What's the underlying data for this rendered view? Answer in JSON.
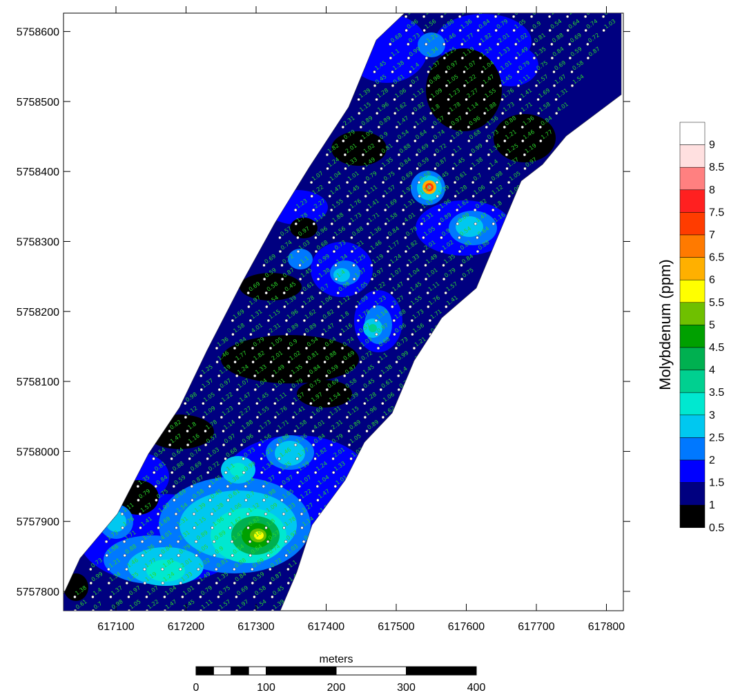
{
  "map": {
    "x_axis": {
      "ticks": [
        "617100",
        "617200",
        "617300",
        "617400",
        "617500",
        "617600",
        "617700",
        "617800"
      ]
    },
    "y_axis": {
      "ticks": [
        "5757800",
        "5757900",
        "5758000",
        "5758100",
        "5758200",
        "5758300",
        "5758400",
        "5758500",
        "5758600"
      ]
    },
    "legend": {
      "title": "Molybdenum (ppm)",
      "levels": [
        {
          "label": "9",
          "color": "#ffe0e0"
        },
        {
          "label": "8.5",
          "color": "#ff8080"
        },
        {
          "label": "8",
          "color": "#ff2020"
        },
        {
          "label": "7.5",
          "color": "#ff3c00"
        },
        {
          "label": "7",
          "color": "#ff7a00"
        },
        {
          "label": "6.5",
          "color": "#ffb000"
        },
        {
          "label": "6",
          "color": "#ffff00"
        },
        {
          "label": "5.5",
          "color": "#6fc000"
        },
        {
          "label": "5",
          "color": "#00a000"
        },
        {
          "label": "4.5",
          "color": "#00b050"
        },
        {
          "label": "4",
          "color": "#00d090"
        },
        {
          "label": "3.5",
          "color": "#00e8d0"
        },
        {
          "label": "3",
          "color": "#00c8f0"
        },
        {
          "label": "2.5",
          "color": "#0078ff"
        },
        {
          "label": "2",
          "color": "#0000ff"
        },
        {
          "label": "1.5",
          "color": "#000080"
        },
        {
          "label": "1",
          "color": "#000000"
        },
        {
          "label": "0.5",
          "color": ""
        }
      ],
      "top_color": "#ffffff"
    },
    "scale_bar": {
      "title": "meters",
      "labels": [
        "0",
        "100",
        "200",
        "300",
        "400"
      ]
    },
    "colors": {
      "background": "#000080",
      "high_anomaly": "#00c8f0",
      "low_zone": "#000000",
      "sample_label": "#2bd82b"
    },
    "sample_values": [
      "1.88",
      "1.73",
      "1.71",
      "1.58",
      "4.01",
      "2.31",
      "0.89",
      "0.89",
      "1.47",
      "1.16",
      "0.57",
      "0.97",
      "0.96",
      "1.56",
      "0.88",
      "1.36",
      "0.84",
      "0.79",
      "1.05",
      "0.9",
      "0.54",
      "0.64",
      "0.74",
      "1.03",
      "0.68",
      "0.73",
      "1.21",
      "1.46",
      "1.77",
      "1.82",
      "2.01",
      "1.02",
      "0.81",
      "0.88",
      "0.69",
      "0.72",
      "1.1",
      "0.99",
      "1.34",
      "1.25",
      "1.19",
      "1.24",
      "1.33",
      "1.49",
      "1.35",
      "0.84",
      "0.59",
      "0.87",
      "1.45",
      "1.38",
      "1.4",
      "1.37",
      "0.97",
      "1.07",
      "1.04",
      "1.01",
      "0.79",
      "0.75",
      "0.69",
      "0.58",
      "0.45",
      "0.61",
      "0.7",
      "0.98",
      "1.05",
      "1.22",
      "1.47",
      "1.45",
      "1.11",
      "1.57",
      "1.97",
      "1.54",
      "1.39",
      "1.28",
      "1.06",
      "1.12",
      "1.09",
      "1.23",
      "2.27",
      "1.55",
      "1.76",
      "1.41",
      "1.69",
      "1.31",
      "1.15",
      "1.96",
      "1.62",
      "0.82",
      "1.8",
      "1.78",
      "1.14"
    ]
  }
}
